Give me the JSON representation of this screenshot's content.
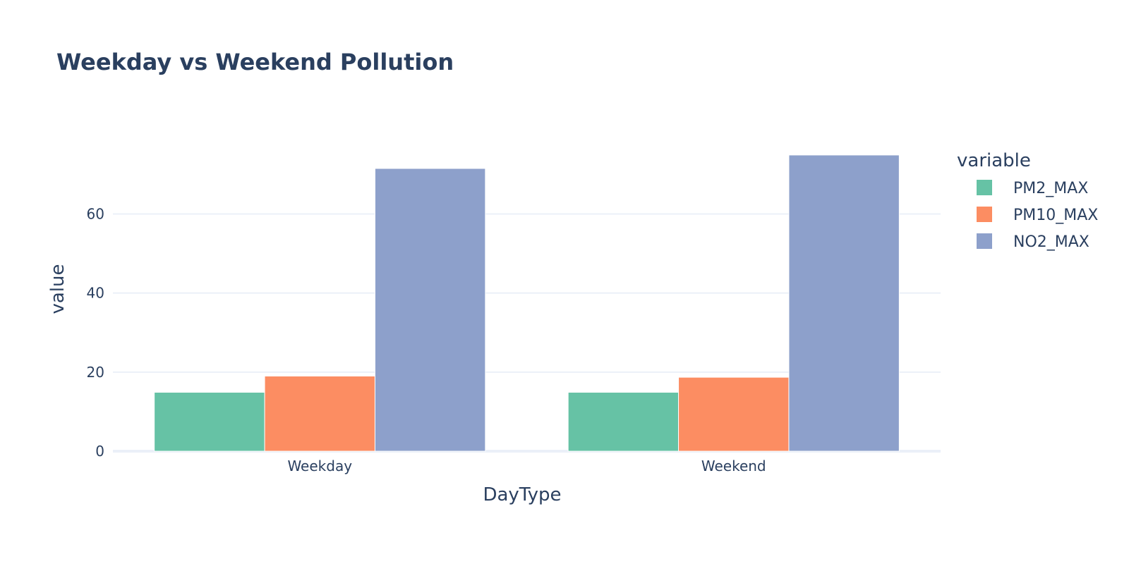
{
  "chart_data": {
    "type": "bar",
    "title": "Weekday vs Weekend Pollution",
    "xlabel": "DayType",
    "ylabel": "value",
    "categories": [
      "Weekday",
      "Weekend"
    ],
    "series": [
      {
        "name": "PM2_MAX",
        "color": "#66c2a5",
        "values": [
          14.9,
          14.9
        ]
      },
      {
        "name": "PM10_MAX",
        "color": "#fc8d62",
        "values": [
          19.0,
          18.7
        ]
      },
      {
        "name": "NO2_MAX",
        "color": "#8da0cb",
        "values": [
          71.5,
          74.9
        ]
      }
    ],
    "ylim": [
      0,
      78.8
    ],
    "yticks": [
      0,
      20,
      40,
      60
    ],
    "grid": true,
    "legend": {
      "title": "variable",
      "placement": "right"
    }
  }
}
